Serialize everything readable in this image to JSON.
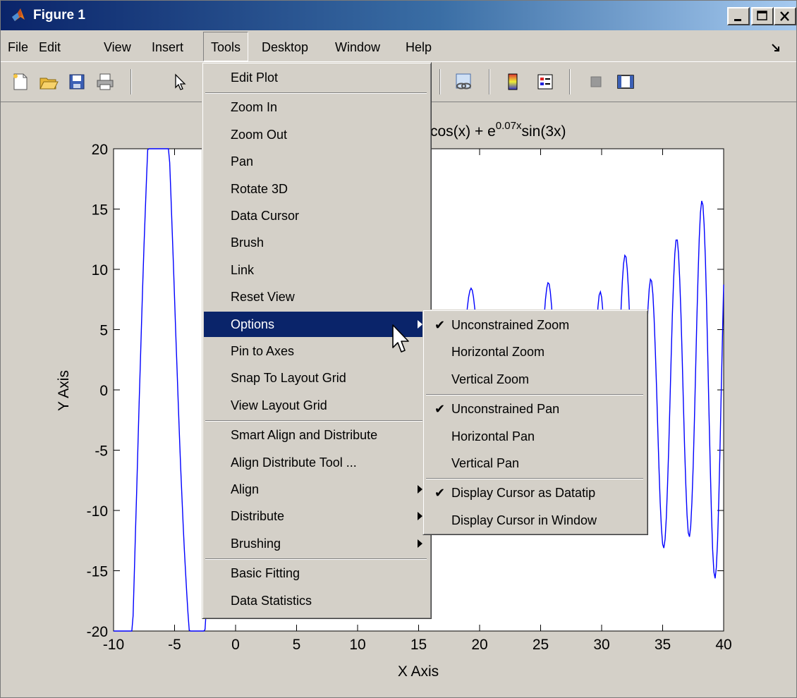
{
  "window": {
    "title": "Figure 1",
    "controls": [
      "minimize",
      "maximize",
      "close"
    ]
  },
  "menubar": {
    "items": [
      "File",
      "Edit",
      "View",
      "Insert",
      "Tools",
      "Desktop",
      "Window",
      "Help"
    ],
    "open_menu": "Tools"
  },
  "toolbar": {
    "icons": [
      "new-figure-icon",
      "open-file-icon",
      "save-icon",
      "print-icon",
      "edit-plot-arrow-icon",
      "link-plot-icon",
      "colorbar-icon",
      "legend-icon",
      "hide-plot-tools-icon",
      "show-plot-tools-icon"
    ]
  },
  "tools_menu": {
    "items": [
      {
        "label": "Edit Plot"
      },
      {
        "label": "Zoom In"
      },
      {
        "label": "Zoom Out"
      },
      {
        "label": "Pan"
      },
      {
        "label": "Rotate 3D"
      },
      {
        "label": "Data Cursor"
      },
      {
        "label": "Brush"
      },
      {
        "label": "Link"
      },
      {
        "label": "Reset View"
      },
      {
        "label": "Options",
        "highlighted": true,
        "submenu": true
      },
      {
        "label": "Pin to Axes"
      },
      {
        "label": "Snap To Layout Grid"
      },
      {
        "label": "View Layout Grid"
      },
      {
        "label": "Smart Align and Distribute"
      },
      {
        "label": "Align Distribute Tool ..."
      },
      {
        "label": "Align",
        "submenu": true
      },
      {
        "label": "Distribute",
        "submenu": true
      },
      {
        "label": "Brushing",
        "submenu": true
      },
      {
        "label": "Basic Fitting"
      },
      {
        "label": "Data Statistics"
      }
    ]
  },
  "options_submenu": {
    "items": [
      {
        "label": "Unconstrained Zoom",
        "checked": true
      },
      {
        "label": "Horizontal Zoom",
        "checked": false
      },
      {
        "label": "Vertical Zoom",
        "checked": false
      },
      {
        "label": "Unconstrained Pan",
        "checked": true
      },
      {
        "label": "Horizontal Pan",
        "checked": false
      },
      {
        "label": "Vertical Pan",
        "checked": false
      },
      {
        "label": "Display Cursor as Datatip",
        "checked": true
      },
      {
        "label": "Display Cursor in Window",
        "checked": false
      }
    ]
  },
  "chart_data": {
    "type": "line",
    "title_visible": "cos(x) + e",
    "title_exponent": "0.07x",
    "title_tail": "sin(3x)",
    "xlabel": "X Axis",
    "ylabel": "Y Axis",
    "xlim": [
      -10,
      40
    ],
    "ylim": [
      -20,
      20
    ],
    "xticks": [
      "-10",
      "-5",
      "0",
      "5",
      "10",
      "15",
      "20",
      "25",
      "30",
      "35",
      "40"
    ],
    "yticks": [
      "20",
      "15",
      "10",
      "5",
      "0",
      "-5",
      "-10",
      "-15",
      "-20"
    ],
    "series": [
      {
        "color": "#0000ff",
        "function": "20*exp(-0.07*x)*cos(x) + exp(0.07*x)*sin(3*x)",
        "step": 0.1
      }
    ]
  }
}
